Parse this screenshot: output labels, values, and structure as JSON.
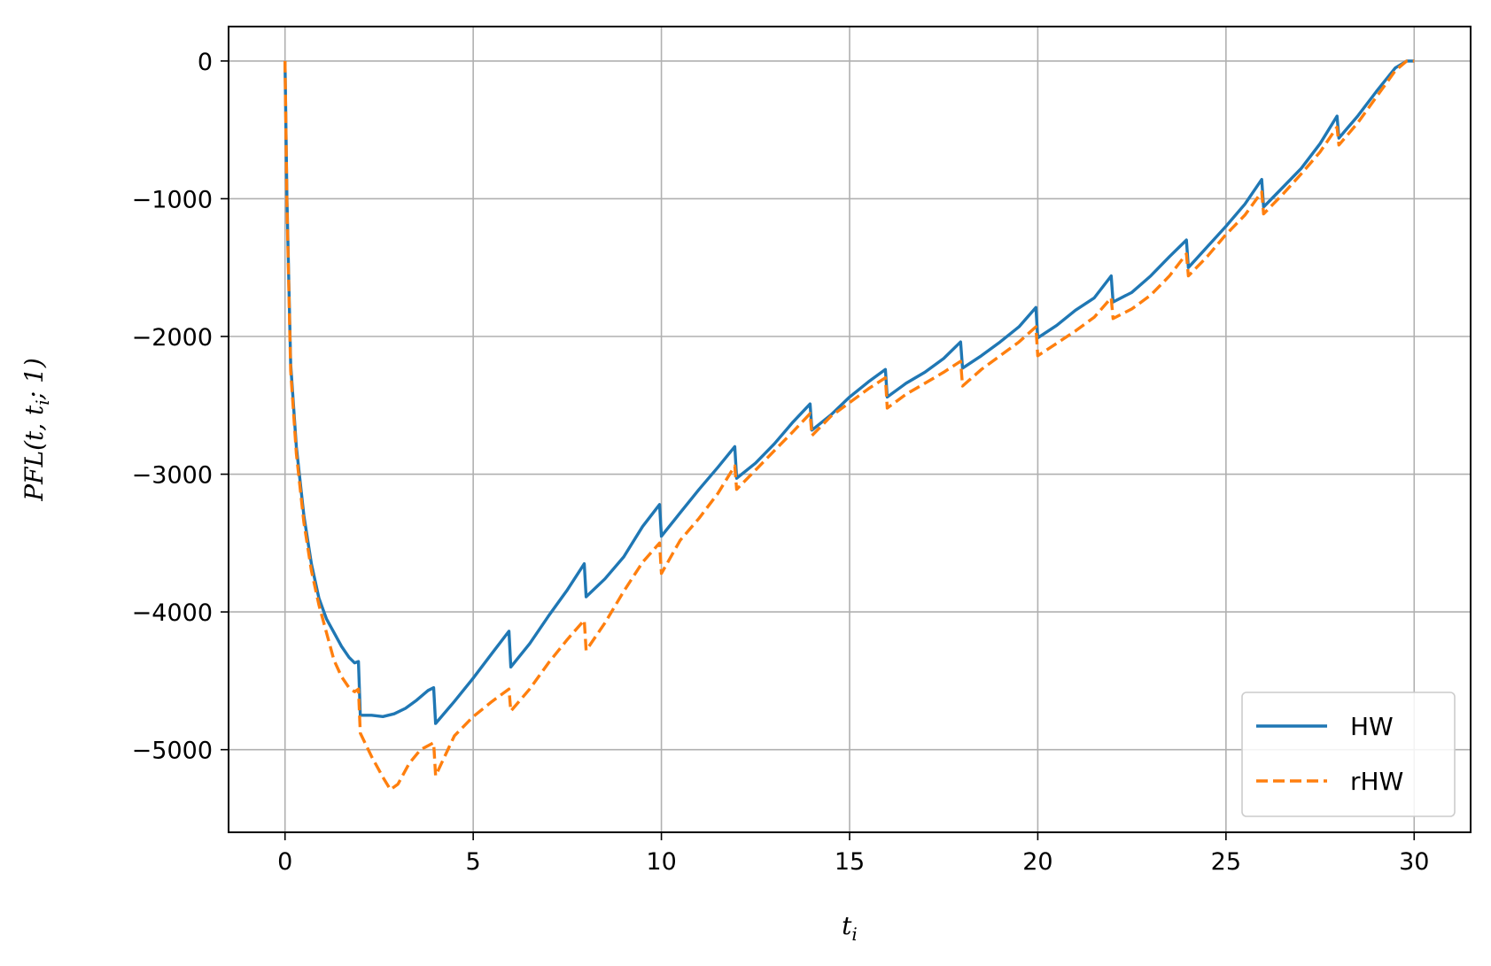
{
  "chart_data": {
    "type": "line",
    "xlabel": "t_i",
    "ylabel": "PFL(t, t_i; 1)",
    "xlim": [
      -1.5,
      31.5
    ],
    "ylim": [
      -5600,
      250
    ],
    "xticks": [
      0,
      5,
      10,
      15,
      20,
      25,
      30
    ],
    "yticks": [
      0,
      -1000,
      -2000,
      -3000,
      -4000,
      -5000
    ],
    "grid": true,
    "legend_position": "lower-right",
    "series": [
      {
        "name": "HW",
        "color": "#1f77b4",
        "dash": "solid",
        "points": [
          [
            0,
            0
          ],
          [
            0.05,
            -1000
          ],
          [
            0.15,
            -2200
          ],
          [
            0.3,
            -2800
          ],
          [
            0.5,
            -3300
          ],
          [
            0.7,
            -3650
          ],
          [
            0.9,
            -3900
          ],
          [
            1.1,
            -4050
          ],
          [
            1.3,
            -4150
          ],
          [
            1.5,
            -4250
          ],
          [
            1.7,
            -4330
          ],
          [
            1.85,
            -4370
          ],
          [
            1.95,
            -4360
          ],
          [
            2.0,
            -4750
          ],
          [
            2.3,
            -4750
          ],
          [
            2.6,
            -4760
          ],
          [
            2.9,
            -4740
          ],
          [
            3.2,
            -4700
          ],
          [
            3.5,
            -4640
          ],
          [
            3.8,
            -4570
          ],
          [
            3.95,
            -4550
          ],
          [
            4.0,
            -4810
          ],
          [
            4.5,
            -4650
          ],
          [
            5.0,
            -4480
          ],
          [
            5.5,
            -4300
          ],
          [
            5.95,
            -4140
          ],
          [
            6.0,
            -4400
          ],
          [
            6.5,
            -4230
          ],
          [
            7.0,
            -4030
          ],
          [
            7.5,
            -3840
          ],
          [
            7.95,
            -3650
          ],
          [
            8.0,
            -3890
          ],
          [
            8.5,
            -3760
          ],
          [
            9.0,
            -3600
          ],
          [
            9.5,
            -3380
          ],
          [
            9.95,
            -3220
          ],
          [
            10.0,
            -3450
          ],
          [
            10.5,
            -3280
          ],
          [
            11.0,
            -3110
          ],
          [
            11.5,
            -2950
          ],
          [
            11.95,
            -2800
          ],
          [
            12.0,
            -3030
          ],
          [
            12.5,
            -2920
          ],
          [
            13.0,
            -2780
          ],
          [
            13.5,
            -2620
          ],
          [
            13.95,
            -2490
          ],
          [
            14.0,
            -2680
          ],
          [
            14.5,
            -2570
          ],
          [
            15.0,
            -2440
          ],
          [
            15.5,
            -2330
          ],
          [
            15.95,
            -2240
          ],
          [
            16.0,
            -2440
          ],
          [
            16.5,
            -2340
          ],
          [
            17.0,
            -2260
          ],
          [
            17.5,
            -2160
          ],
          [
            17.95,
            -2040
          ],
          [
            18.0,
            -2230
          ],
          [
            18.5,
            -2140
          ],
          [
            19.0,
            -2040
          ],
          [
            19.5,
            -1930
          ],
          [
            19.95,
            -1790
          ],
          [
            20.0,
            -2010
          ],
          [
            20.5,
            -1920
          ],
          [
            21.0,
            -1810
          ],
          [
            21.5,
            -1720
          ],
          [
            21.95,
            -1560
          ],
          [
            22.0,
            -1750
          ],
          [
            22.5,
            -1680
          ],
          [
            23.0,
            -1560
          ],
          [
            23.5,
            -1420
          ],
          [
            23.95,
            -1300
          ],
          [
            24.0,
            -1500
          ],
          [
            24.5,
            -1350
          ],
          [
            25.0,
            -1200
          ],
          [
            25.5,
            -1040
          ],
          [
            25.95,
            -860
          ],
          [
            26.0,
            -1060
          ],
          [
            26.5,
            -920
          ],
          [
            27.0,
            -780
          ],
          [
            27.5,
            -600
          ],
          [
            27.95,
            -400
          ],
          [
            28.0,
            -560
          ],
          [
            28.5,
            -400
          ],
          [
            29.0,
            -220
          ],
          [
            29.5,
            -50
          ],
          [
            29.8,
            0
          ],
          [
            30.0,
            0
          ]
        ]
      },
      {
        "name": "rHW",
        "color": "#ff7f0e",
        "dash": "dashed",
        "points": [
          [
            0,
            0
          ],
          [
            0.05,
            -1050
          ],
          [
            0.15,
            -2250
          ],
          [
            0.3,
            -2850
          ],
          [
            0.5,
            -3350
          ],
          [
            0.7,
            -3700
          ],
          [
            0.9,
            -3950
          ],
          [
            1.1,
            -4150
          ],
          [
            1.3,
            -4350
          ],
          [
            1.5,
            -4470
          ],
          [
            1.7,
            -4550
          ],
          [
            1.85,
            -4580
          ],
          [
            1.95,
            -4560
          ],
          [
            2.0,
            -4880
          ],
          [
            2.3,
            -5050
          ],
          [
            2.6,
            -5200
          ],
          [
            2.8,
            -5290
          ],
          [
            3.0,
            -5250
          ],
          [
            3.3,
            -5100
          ],
          [
            3.6,
            -5000
          ],
          [
            3.95,
            -4950
          ],
          [
            4.0,
            -5190
          ],
          [
            4.5,
            -4900
          ],
          [
            5.0,
            -4760
          ],
          [
            5.5,
            -4650
          ],
          [
            5.95,
            -4560
          ],
          [
            6.0,
            -4720
          ],
          [
            6.5,
            -4560
          ],
          [
            7.0,
            -4370
          ],
          [
            7.5,
            -4200
          ],
          [
            7.95,
            -4060
          ],
          [
            8.0,
            -4280
          ],
          [
            8.5,
            -4080
          ],
          [
            9.0,
            -3850
          ],
          [
            9.5,
            -3640
          ],
          [
            9.95,
            -3500
          ],
          [
            10.0,
            -3720
          ],
          [
            10.5,
            -3480
          ],
          [
            11.0,
            -3320
          ],
          [
            11.5,
            -3140
          ],
          [
            11.95,
            -2940
          ],
          [
            12.0,
            -3110
          ],
          [
            12.5,
            -2970
          ],
          [
            13.0,
            -2830
          ],
          [
            13.5,
            -2690
          ],
          [
            13.95,
            -2560
          ],
          [
            14.0,
            -2720
          ],
          [
            14.5,
            -2580
          ],
          [
            15.0,
            -2480
          ],
          [
            15.5,
            -2380
          ],
          [
            15.95,
            -2300
          ],
          [
            16.0,
            -2520
          ],
          [
            16.5,
            -2420
          ],
          [
            17.0,
            -2340
          ],
          [
            17.5,
            -2260
          ],
          [
            17.95,
            -2180
          ],
          [
            18.0,
            -2360
          ],
          [
            18.5,
            -2240
          ],
          [
            19.0,
            -2140
          ],
          [
            19.5,
            -2040
          ],
          [
            19.95,
            -1930
          ],
          [
            20.0,
            -2140
          ],
          [
            20.5,
            -2050
          ],
          [
            21.0,
            -1960
          ],
          [
            21.5,
            -1860
          ],
          [
            21.95,
            -1720
          ],
          [
            22.0,
            -1870
          ],
          [
            22.5,
            -1800
          ],
          [
            23.0,
            -1700
          ],
          [
            23.5,
            -1560
          ],
          [
            23.95,
            -1400
          ],
          [
            24.0,
            -1560
          ],
          [
            24.5,
            -1420
          ],
          [
            25.0,
            -1260
          ],
          [
            25.5,
            -1120
          ],
          [
            25.95,
            -950
          ],
          [
            26.0,
            -1110
          ],
          [
            26.5,
            -970
          ],
          [
            27.0,
            -820
          ],
          [
            27.5,
            -660
          ],
          [
            27.95,
            -480
          ],
          [
            28.0,
            -610
          ],
          [
            28.5,
            -450
          ],
          [
            29.0,
            -260
          ],
          [
            29.5,
            -70
          ],
          [
            29.8,
            0
          ],
          [
            30.0,
            0
          ]
        ]
      }
    ]
  }
}
